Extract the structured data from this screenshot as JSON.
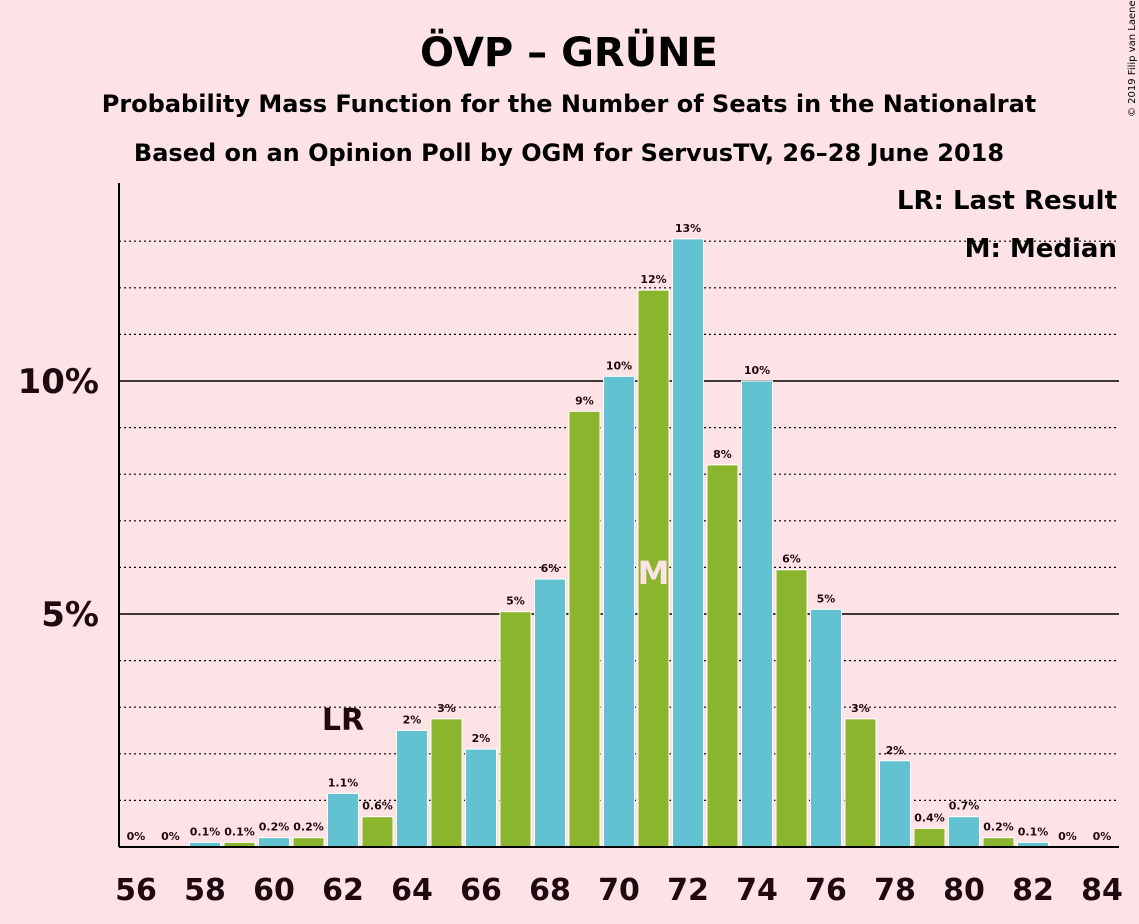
{
  "chart_data": {
    "type": "bar",
    "title": "ÖVP – GRÜNE",
    "subtitle_1": "Probability Mass Function for the Number of Seats in the Nationalrat",
    "subtitle_2": "Based on an Opinion Poll by OGM for ServusTV, 26–28 June 2018",
    "copyright": "© 2019 Filip van Laenen",
    "legend": [
      "LR: Last Result",
      "M: Median"
    ],
    "xlabel": "",
    "ylabel": "",
    "ylim": [
      0,
      14.3
    ],
    "y_ticks": [
      {
        "value": 5,
        "label": "5%"
      },
      {
        "value": 10,
        "label": "10%"
      }
    ],
    "x_tick_labels": [
      "56",
      "58",
      "60",
      "62",
      "64",
      "66",
      "68",
      "70",
      "72",
      "74",
      "76",
      "78",
      "80",
      "82",
      "84"
    ],
    "categories": [
      56,
      57,
      58,
      59,
      60,
      61,
      62,
      63,
      64,
      65,
      66,
      67,
      68,
      69,
      70,
      71,
      72,
      73,
      74,
      75,
      76,
      77,
      78,
      79,
      80,
      81,
      82,
      83,
      84
    ],
    "values": [
      0,
      0,
      0.1,
      0.1,
      0.2,
      0.2,
      1.15,
      0.65,
      2.5,
      2.75,
      2.1,
      5.05,
      5.75,
      9.35,
      10.1,
      11.95,
      13.05,
      8.2,
      10.0,
      5.95,
      5.1,
      2.75,
      1.85,
      0.4,
      0.65,
      0.2,
      0.1,
      0,
      0
    ],
    "value_labels": [
      "0%",
      "0%",
      "0.1%",
      "0.1%",
      "0.2%",
      "0.2%",
      "1.1%",
      "0.6%",
      "2%",
      "3%",
      "2%",
      "5%",
      "6%",
      "9%",
      "10%",
      "12%",
      "13%",
      "8%",
      "10%",
      "6%",
      "5%",
      "3%",
      "2%",
      "0.4%",
      "0.7%",
      "0.2%",
      "0.1%",
      "0%",
      "0%"
    ],
    "last_result": {
      "seat": 62,
      "label": "LR"
    },
    "median": {
      "seat": 71,
      "label": "M"
    },
    "colors": {
      "green": "#8ab52d",
      "blue": "#63c2d1",
      "background": "#fde3e6",
      "text": "#1f0a10",
      "median_label": "#fde3e6"
    }
  }
}
